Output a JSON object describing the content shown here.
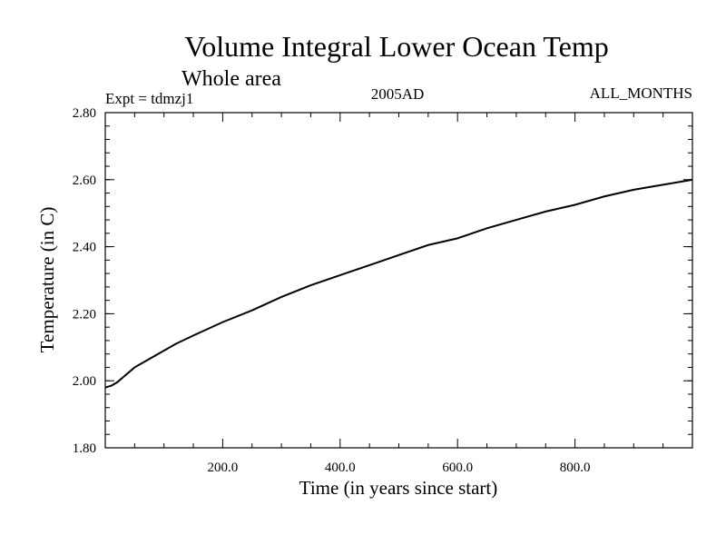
{
  "chart_data": {
    "type": "line",
    "title": "Volume Integral Lower Ocean Temp",
    "subtitle": "Whole area",
    "expt_label": "Expt = tdmzj1",
    "period_label": "2005AD",
    "months_label": "ALL_MONTHS",
    "xlabel": "Time (in years since start)",
    "ylabel": "Temperature (in C)",
    "xlim": [
      0,
      1000
    ],
    "ylim": [
      1.8,
      2.8
    ],
    "x_ticks": [
      200,
      400,
      600,
      800
    ],
    "x_tick_labels": [
      "200.0",
      "400.0",
      "600.0",
      "800.0"
    ],
    "y_ticks": [
      1.8,
      2.0,
      2.2,
      2.4,
      2.6,
      2.8
    ],
    "y_tick_labels": [
      "1.80",
      "2.00",
      "2.20",
      "2.40",
      "2.60",
      "2.80"
    ],
    "series": [
      {
        "name": "Temperature",
        "color": "#000000",
        "x": [
          0,
          10,
          20,
          30,
          40,
          50,
          60,
          80,
          100,
          120,
          150,
          200,
          250,
          300,
          350,
          400,
          450,
          500,
          550,
          600,
          650,
          700,
          750,
          800,
          850,
          900,
          950,
          1000
        ],
        "y": [
          1.98,
          1.985,
          1.995,
          2.01,
          2.025,
          2.04,
          2.05,
          2.07,
          2.09,
          2.11,
          2.135,
          2.175,
          2.21,
          2.25,
          2.285,
          2.315,
          2.345,
          2.375,
          2.405,
          2.425,
          2.455,
          2.48,
          2.505,
          2.525,
          2.55,
          2.57,
          2.585,
          2.6
        ]
      }
    ]
  }
}
